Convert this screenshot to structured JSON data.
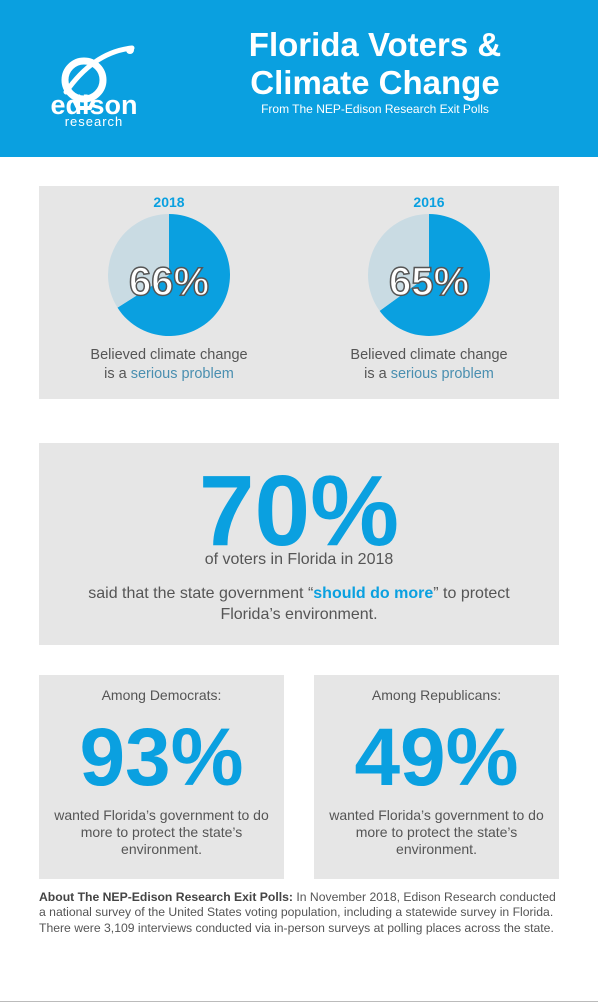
{
  "header": {
    "logo_word": "edison",
    "logo_sub": "research",
    "title_line1": "Florida Voters &",
    "title_line2": "Climate Change",
    "subtitle": "From The NEP-Edison Research Exit Polls"
  },
  "colors": {
    "accent": "#0aa0e0",
    "pie_rest": "#c9dbe3",
    "panel": "#e6e6e6"
  },
  "chart_data": [
    {
      "type": "pie",
      "title": "2018",
      "values": [
        66,
        34
      ],
      "value_label": "66%",
      "caption_pre": "Believed climate change",
      "caption_mid": "is a ",
      "caption_highlight": "serious problem"
    },
    {
      "type": "pie",
      "title": "2016",
      "values": [
        65,
        35
      ],
      "value_label": "65%",
      "caption_pre": "Believed climate change",
      "caption_mid": "is a ",
      "caption_highlight": "serious problem"
    }
  ],
  "overall": {
    "value": "70%",
    "line1": "of voters in Florida in 2018",
    "line2_pre": "said that the state government “",
    "line2_highlight": "should do more",
    "line2_post": "” to protect Florida’s environment."
  },
  "democrats": {
    "title": "Among Democrats:",
    "value": "93%",
    "caption": "wanted Florida’s government to do more to protect the state’s environment."
  },
  "republicans": {
    "title": "Among Republicans:",
    "value": "49%",
    "caption": "wanted Florida’s government to do more to protect the state’s environment."
  },
  "about": {
    "label": "About The NEP-Edison Research Exit Polls:",
    "text": " In November 2018, Edison Research conducted a national survey of the United States voting population, including a statewide survey in Florida. There were 3,109 interviews conducted via in-person surveys at polling places across the state."
  }
}
